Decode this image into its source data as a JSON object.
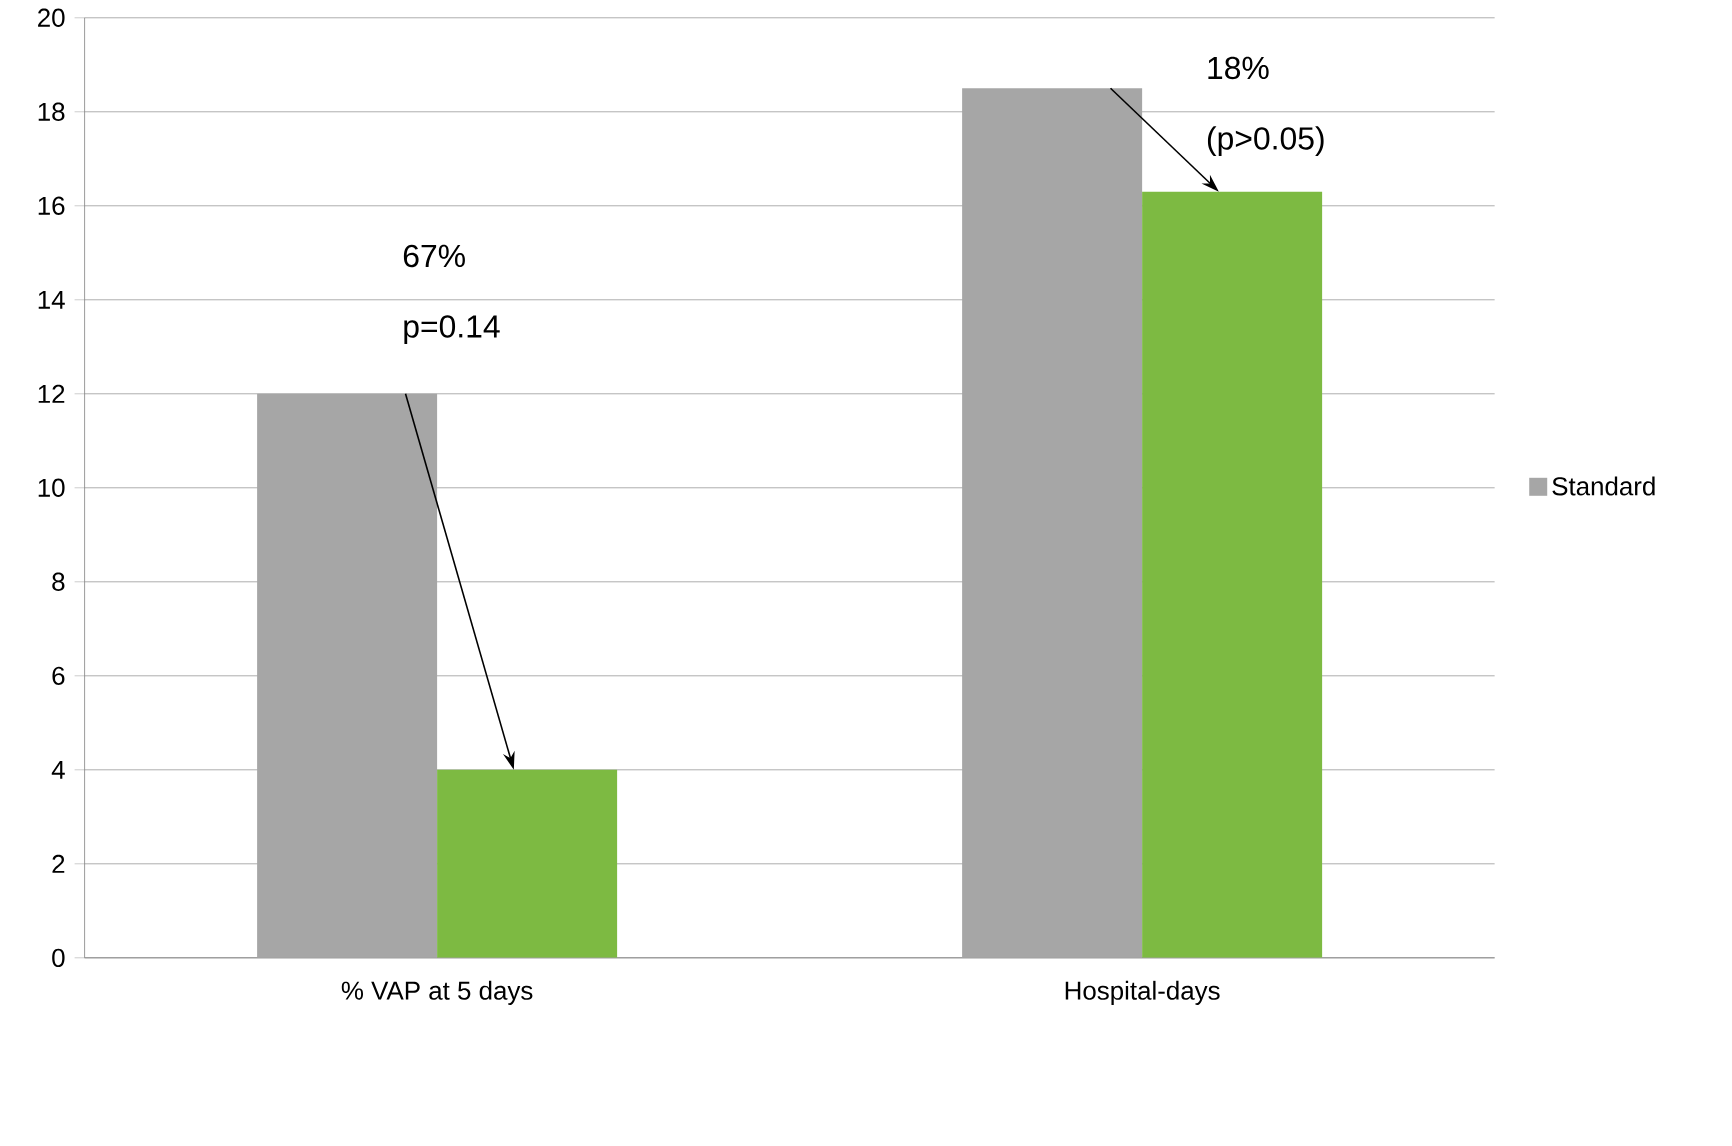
{
  "chart_data": {
    "type": "bar",
    "categories": [
      "% VAP at 5 days",
      "Hospital-days"
    ],
    "series": [
      {
        "name": "Standard",
        "color": "#a6a6a6",
        "values": [
          12,
          18.5
        ]
      },
      {
        "color": "#7dba42",
        "values": [
          4,
          16.3
        ]
      }
    ],
    "ylim": [
      0,
      20
    ],
    "yticks": [
      0,
      2,
      4,
      6,
      8,
      10,
      12,
      14,
      16,
      18,
      20
    ],
    "grid": "y",
    "legend": "right",
    "annotations": [
      "67%",
      "p=0.14",
      "18%",
      "(p>0.05)"
    ]
  }
}
